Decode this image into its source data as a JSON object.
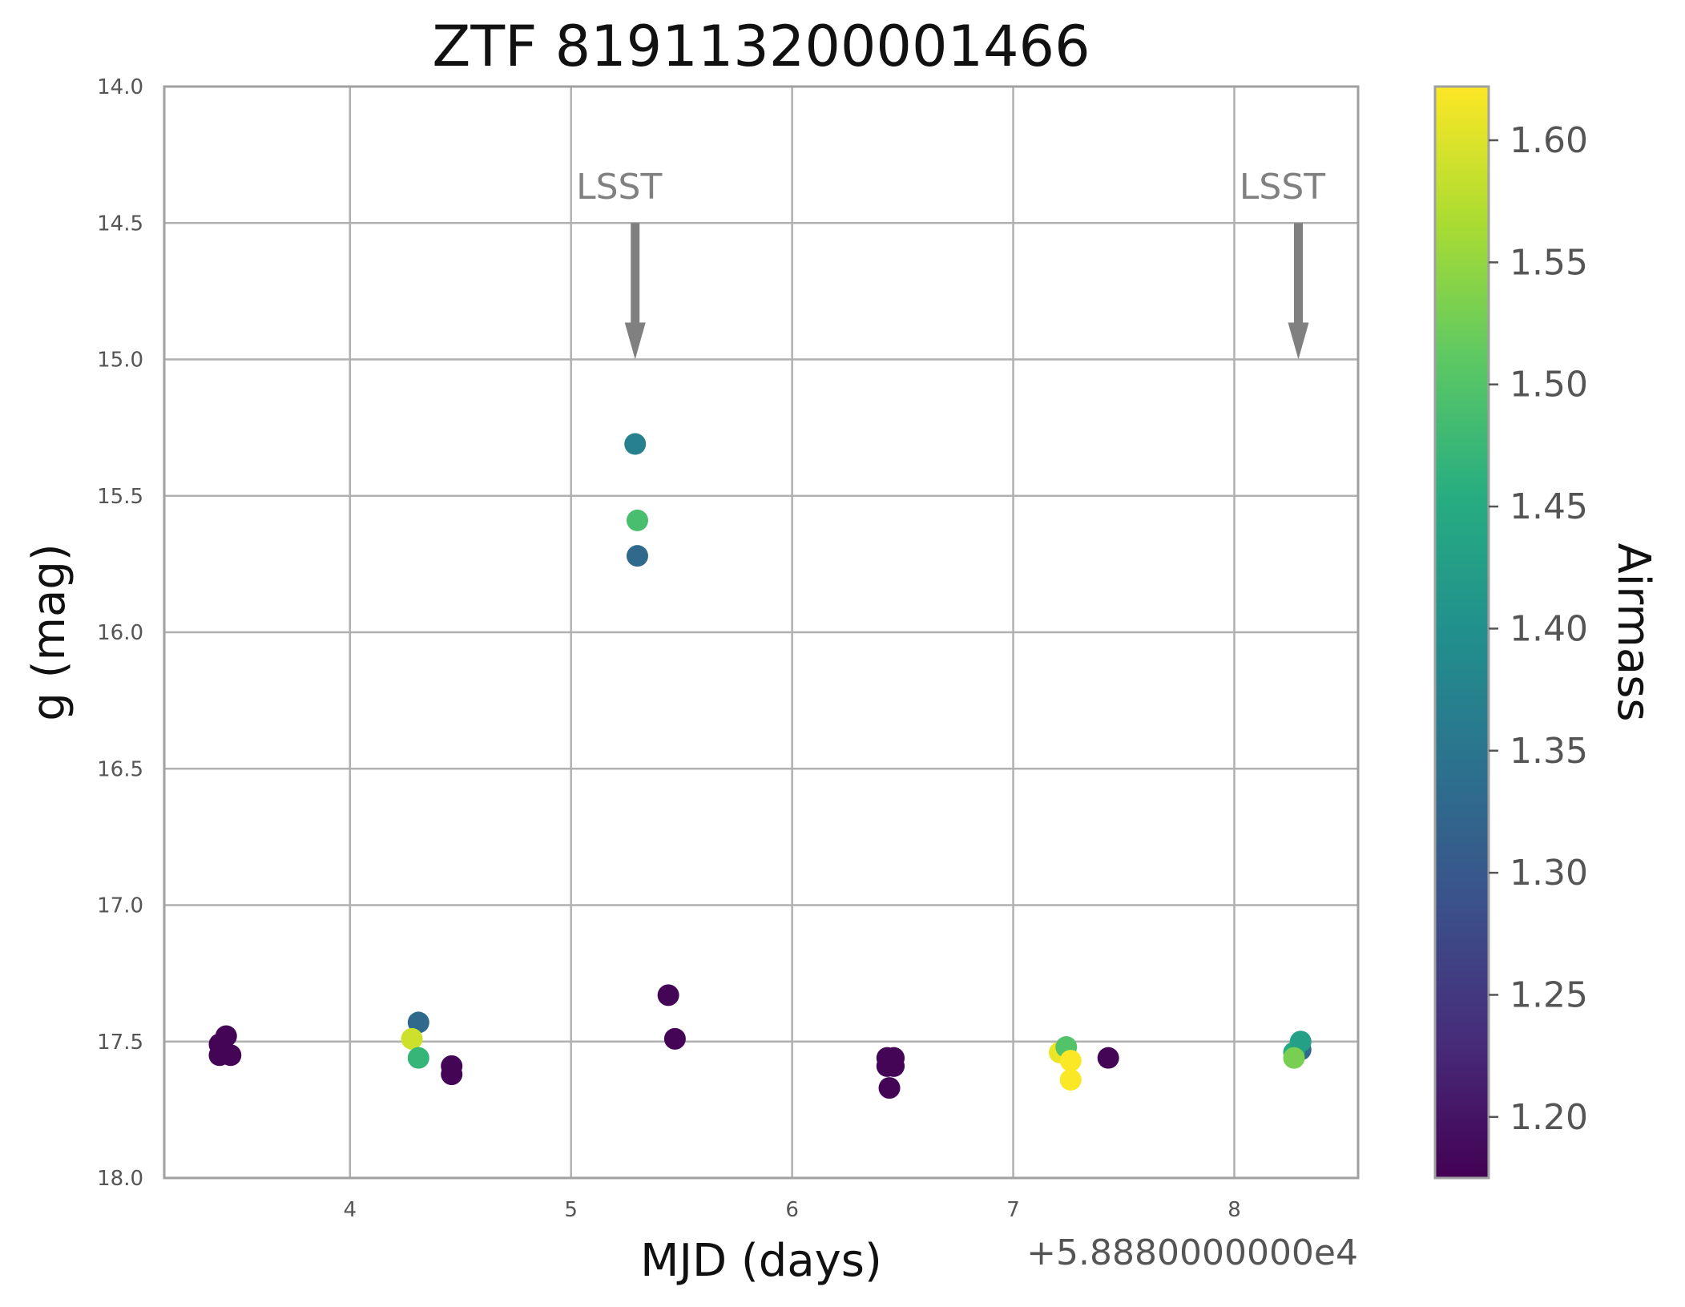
{
  "chart_data": {
    "type": "scatter",
    "title": "ZTF 819113200001466",
    "xlabel": "MJD (days)",
    "ylabel": "g (mag)",
    "x_offset_label": "+5.8880000000e4",
    "x_offset": 58880,
    "xlim": [
      58883.16,
      58888.56
    ],
    "ylim": [
      18.0,
      14.0
    ],
    "y_inverted": true,
    "grid": true,
    "xticks": [
      58884,
      58885,
      58886,
      58887,
      58888
    ],
    "xtick_labels": [
      "4",
      "5",
      "6",
      "7",
      "8"
    ],
    "yticks": [
      14.0,
      14.5,
      15.0,
      15.5,
      16.0,
      16.5,
      17.0,
      17.5,
      18.0
    ],
    "ytick_labels": [
      "14.0",
      "14.5",
      "15.0",
      "15.5",
      "16.0",
      "16.5",
      "17.0",
      "17.5",
      "18.0"
    ],
    "colorbar": {
      "label": "Airmass",
      "colormap": "viridis",
      "range": [
        1.175,
        1.622
      ],
      "ticks": [
        1.2,
        1.25,
        1.3,
        1.35,
        1.4,
        1.45,
        1.5,
        1.55,
        1.6
      ],
      "tick_labels": [
        "1.20",
        "1.25",
        "1.30",
        "1.35",
        "1.40",
        "1.45",
        "1.50",
        "1.55",
        "1.60"
      ]
    },
    "annotations": [
      {
        "text": "LSST",
        "x": 58885.29,
        "y_text": 14.37,
        "y_tail": 14.5,
        "y_head": 15.0,
        "color": "#808080"
      },
      {
        "text": "LSST",
        "x": 58888.29,
        "y_text": 14.37,
        "y_tail": 14.5,
        "y_head": 15.0,
        "color": "#808080"
      }
    ],
    "points": [
      {
        "x": 58883.41,
        "y": 17.51,
        "airmass": 1.18
      },
      {
        "x": 58883.44,
        "y": 17.48,
        "airmass": 1.18
      },
      {
        "x": 58883.41,
        "y": 17.55,
        "airmass": 1.18
      },
      {
        "x": 58883.46,
        "y": 17.55,
        "airmass": 1.18
      },
      {
        "x": 58884.31,
        "y": 17.43,
        "airmass": 1.33
      },
      {
        "x": 58884.28,
        "y": 17.49,
        "airmass": 1.59
      },
      {
        "x": 58884.31,
        "y": 17.56,
        "airmass": 1.47
      },
      {
        "x": 58884.46,
        "y": 17.59,
        "airmass": 1.18
      },
      {
        "x": 58884.46,
        "y": 17.62,
        "airmass": 1.18
      },
      {
        "x": 58885.29,
        "y": 15.31,
        "airmass": 1.37
      },
      {
        "x": 58885.3,
        "y": 15.59,
        "airmass": 1.49
      },
      {
        "x": 58885.3,
        "y": 15.72,
        "airmass": 1.33
      },
      {
        "x": 58885.44,
        "y": 17.33,
        "airmass": 1.18
      },
      {
        "x": 58885.47,
        "y": 17.49,
        "airmass": 1.18
      },
      {
        "x": 58886.43,
        "y": 17.56,
        "airmass": 1.18
      },
      {
        "x": 58886.46,
        "y": 17.56,
        "airmass": 1.18
      },
      {
        "x": 58886.43,
        "y": 17.59,
        "airmass": 1.18
      },
      {
        "x": 58886.46,
        "y": 17.59,
        "airmass": 1.18
      },
      {
        "x": 58886.44,
        "y": 17.67,
        "airmass": 1.18
      },
      {
        "x": 58887.21,
        "y": 17.54,
        "airmass": 1.61
      },
      {
        "x": 58887.24,
        "y": 17.52,
        "airmass": 1.5
      },
      {
        "x": 58887.26,
        "y": 17.57,
        "airmass": 1.62
      },
      {
        "x": 58887.26,
        "y": 17.64,
        "airmass": 1.62
      },
      {
        "x": 58887.43,
        "y": 17.56,
        "airmass": 1.18
      },
      {
        "x": 58888.3,
        "y": 17.53,
        "airmass": 1.33
      },
      {
        "x": 58888.27,
        "y": 17.54,
        "airmass": 1.45
      },
      {
        "x": 58888.3,
        "y": 17.5,
        "airmass": 1.43
      },
      {
        "x": 58888.27,
        "y": 17.56,
        "airmass": 1.53
      }
    ]
  }
}
